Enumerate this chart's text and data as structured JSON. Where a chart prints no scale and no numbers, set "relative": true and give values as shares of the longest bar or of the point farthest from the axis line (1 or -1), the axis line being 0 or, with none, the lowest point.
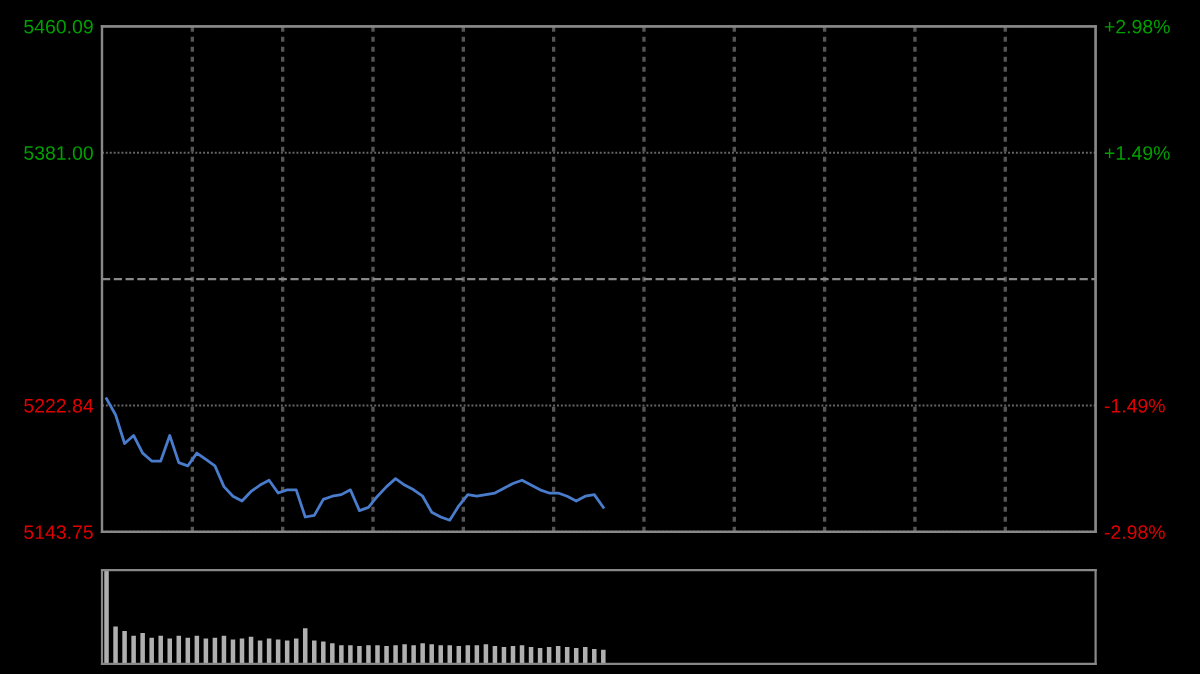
{
  "chart_data": [
    {
      "type": "line",
      "categories": [
        null,
        null,
        null,
        null,
        null,
        null,
        null,
        null,
        null,
        null,
        null,
        null,
        null,
        null,
        null,
        null,
        null,
        null,
        null,
        null,
        null,
        null,
        null,
        null,
        null,
        null,
        null,
        null,
        null,
        null,
        null,
        null,
        null,
        null,
        null,
        null,
        null,
        null,
        null,
        null,
        null,
        null,
        null,
        null,
        null,
        null,
        null,
        null,
        null,
        null,
        null,
        null,
        null,
        null,
        null,
        null,
        null,
        null,
        null,
        null,
        null,
        null,
        null,
        null,
        null,
        null,
        null,
        null,
        null,
        null,
        null,
        null,
        null,
        null,
        null,
        null,
        null,
        null,
        null,
        null,
        null,
        null,
        null,
        null,
        null,
        null,
        null,
        null,
        null,
        null,
        null,
        null,
        null,
        null,
        null,
        null,
        null,
        null,
        null,
        null,
        null,
        null,
        null,
        null,
        null,
        null,
        null,
        null,
        null,
        null
      ],
      "ylim": [
        5143.75,
        5460.09
      ],
      "yticks": [
        {
          "value": 5143.75,
          "label": "5143.75"
        },
        {
          "value": 5222.84,
          "label": "5222.84"
        },
        {
          "value": 5381,
          "label": "5381.00"
        },
        {
          "value": 5460.09,
          "label": "5460.09"
        }
      ],
      "y2lim": [
        -2.98,
        2.98
      ],
      "y2ticks": [
        {
          "value": -2.98,
          "label": "-2.98%"
        },
        {
          "value": -1.49,
          "label": "-1.49%"
        },
        {
          "value": 1.49,
          "label": "+1.49%"
        },
        {
          "value": 2.98,
          "label": "+2.98%"
        }
      ],
      "grid": true,
      "ref_lines": [
        {
          "axis": "y",
          "value": 5301.92,
          "color": "#888888",
          "line_style": "dashed"
        }
      ],
      "series": [
        {
          "color": "#4a7ccc",
          "values": [
            5227,
            5217,
            5199,
            5204,
            5193,
            5188,
            5188,
            5204,
            5187,
            5185,
            5193,
            5189,
            5185,
            5172,
            5166,
            5163,
            5169,
            5173,
            5176,
            5168,
            5170,
            5170,
            5153,
            5154,
            5164,
            5166,
            5167,
            5170,
            5157,
            5159,
            5166,
            5172,
            5177,
            5173,
            5170,
            5166,
            5156,
            5153,
            5151,
            5160,
            5167,
            5166,
            5167,
            5168,
            5171,
            5174,
            5176,
            5173,
            5170,
            5168,
            5168,
            5166,
            5163,
            5166,
            5167,
            5159,
            null,
            null,
            null,
            null,
            null,
            null,
            null,
            null,
            null,
            null,
            null,
            null,
            null,
            null,
            null,
            null,
            null,
            null,
            null,
            null,
            null,
            null,
            null,
            null,
            null,
            null,
            null,
            null,
            null,
            null,
            null,
            null,
            null,
            null,
            null,
            null,
            null,
            null,
            null,
            null,
            null,
            null,
            null,
            null,
            null,
            null,
            null,
            null,
            null,
            null,
            null,
            null,
            null,
            null
          ]
        }
      ]
    },
    {
      "type": "bar",
      "relative": true,
      "categories": [
        null,
        null,
        null,
        null,
        null,
        null,
        null,
        null,
        null,
        null,
        null,
        null,
        null,
        null,
        null,
        null,
        null,
        null,
        null,
        null,
        null,
        null,
        null,
        null,
        null,
        null,
        null,
        null,
        null,
        null,
        null,
        null,
        null,
        null,
        null,
        null,
        null,
        null,
        null,
        null,
        null,
        null,
        null,
        null,
        null,
        null,
        null,
        null,
        null,
        null,
        null,
        null,
        null,
        null,
        null,
        null,
        null,
        null,
        null,
        null,
        null,
        null,
        null,
        null,
        null,
        null,
        null,
        null,
        null,
        null,
        null,
        null,
        null,
        null,
        null,
        null,
        null,
        null,
        null,
        null,
        null,
        null,
        null,
        null,
        null,
        null,
        null,
        null,
        null,
        null,
        null,
        null,
        null,
        null,
        null,
        null,
        null,
        null,
        null,
        null,
        null,
        null,
        null,
        null,
        null,
        null,
        null,
        null,
        null,
        null
      ],
      "series": [
        {
          "color": "#b0b0b0",
          "values": [
            1.0,
            0.4,
            0.35,
            0.3,
            0.33,
            0.28,
            0.3,
            0.27,
            0.3,
            0.28,
            0.3,
            0.27,
            0.28,
            0.3,
            0.26,
            0.27,
            0.29,
            0.25,
            0.27,
            0.26,
            0.25,
            0.27,
            0.38,
            0.25,
            0.24,
            0.22,
            0.2,
            0.2,
            0.19,
            0.2,
            0.2,
            0.19,
            0.2,
            0.21,
            0.2,
            0.22,
            0.21,
            0.2,
            0.2,
            0.19,
            0.2,
            0.2,
            0.21,
            0.19,
            0.18,
            0.19,
            0.2,
            0.18,
            0.17,
            0.18,
            0.19,
            0.18,
            0.17,
            0.18,
            0.16,
            0.15,
            null,
            null,
            null,
            null,
            null,
            null,
            null,
            null,
            null,
            null,
            null,
            null,
            null,
            null,
            null,
            null,
            null,
            null,
            null,
            null,
            null,
            null,
            null,
            null,
            null,
            null,
            null,
            null,
            null,
            null,
            null,
            null,
            null,
            null,
            null,
            null,
            null,
            null,
            null,
            null,
            null,
            null,
            null,
            null,
            null,
            null,
            null,
            null,
            null,
            null,
            null,
            null,
            null,
            null
          ]
        }
      ]
    }
  ]
}
